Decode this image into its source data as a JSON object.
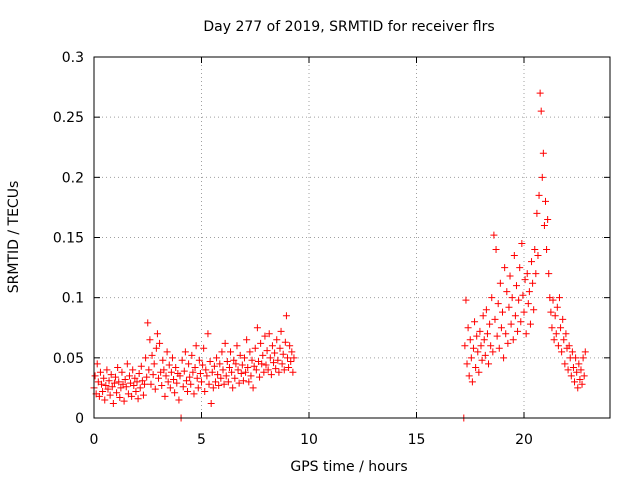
{
  "chart_data": {
    "type": "scatter",
    "title": "Day 277 of 2019, SRMTID for receiver flrs",
    "xlabel": "GPS time / hours",
    "ylabel": "SRMTID / TECUs",
    "xlim": [
      0,
      24
    ],
    "ylim": [
      0,
      0.3
    ],
    "xticks": [
      0,
      5,
      10,
      15,
      20
    ],
    "xtick_labels": [
      "0",
      "5",
      "10",
      "15",
      "20"
    ],
    "yticks": [
      0,
      0.05,
      0.1,
      0.15,
      0.2,
      0.25,
      0.3
    ],
    "ytick_labels": [
      "0",
      "0.05",
      "0.1",
      "0.15",
      "0.2",
      "0.25",
      "0.3"
    ],
    "grid": true,
    "marker": "plus",
    "color": "#ff0000",
    "series": [
      {
        "points": [
          [
            0.0,
            0.025
          ],
          [
            0.05,
            0.035
          ],
          [
            0.1,
            0.02
          ],
          [
            0.15,
            0.045
          ],
          [
            0.2,
            0.03
          ],
          [
            0.25,
            0.018
          ],
          [
            0.3,
            0.038
          ],
          [
            0.35,
            0.028
          ],
          [
            0.4,
            0.022
          ],
          [
            0.45,
            0.033
          ],
          [
            0.5,
            0.015
          ],
          [
            0.55,
            0.027
          ],
          [
            0.6,
            0.04
          ],
          [
            0.65,
            0.024
          ],
          [
            0.7,
            0.031
          ],
          [
            0.75,
            0.019
          ],
          [
            0.8,
            0.036
          ],
          [
            0.85,
            0.026
          ],
          [
            0.9,
            0.012
          ],
          [
            0.95,
            0.029
          ],
          [
            1.0,
            0.034
          ],
          [
            1.05,
            0.021
          ],
          [
            1.1,
            0.042
          ],
          [
            1.15,
            0.03
          ],
          [
            1.2,
            0.017
          ],
          [
            1.25,
            0.025
          ],
          [
            1.3,
            0.038
          ],
          [
            1.35,
            0.028
          ],
          [
            1.4,
            0.014
          ],
          [
            1.45,
            0.032
          ],
          [
            1.5,
            0.026
          ],
          [
            1.55,
            0.045
          ],
          [
            1.6,
            0.02
          ],
          [
            1.65,
            0.035
          ],
          [
            1.7,
            0.029
          ],
          [
            1.75,
            0.018
          ],
          [
            1.8,
            0.04
          ],
          [
            1.85,
            0.027
          ],
          [
            1.9,
            0.033
          ],
          [
            1.95,
            0.022
          ],
          [
            2.0,
            0.03
          ],
          [
            2.05,
            0.016
          ],
          [
            2.1,
            0.037
          ],
          [
            2.15,
            0.025
          ],
          [
            2.2,
            0.043
          ],
          [
            2.25,
            0.031
          ],
          [
            2.3,
            0.019
          ],
          [
            2.35,
            0.028
          ],
          [
            2.4,
            0.05
          ],
          [
            2.45,
            0.034
          ],
          [
            2.5,
            0.079
          ],
          [
            2.55,
            0.04
          ],
          [
            2.6,
            0.065
          ],
          [
            2.65,
            0.028
          ],
          [
            2.7,
            0.052
          ],
          [
            2.75,
            0.036
          ],
          [
            2.8,
            0.045
          ],
          [
            2.85,
            0.024
          ],
          [
            2.9,
            0.058
          ],
          [
            2.95,
            0.07
          ],
          [
            3.0,
            0.033
          ],
          [
            3.05,
            0.062
          ],
          [
            3.1,
            0.038
          ],
          [
            3.15,
            0.027
          ],
          [
            3.2,
            0.048
          ],
          [
            3.25,
            0.04
          ],
          [
            3.3,
            0.018
          ],
          [
            3.35,
            0.035
          ],
          [
            3.4,
            0.055
          ],
          [
            3.45,
            0.03
          ],
          [
            3.5,
            0.044
          ],
          [
            3.55,
            0.025
          ],
          [
            3.6,
            0.038
          ],
          [
            3.65,
            0.05
          ],
          [
            3.7,
            0.032
          ],
          [
            3.75,
            0.021
          ],
          [
            3.8,
            0.042
          ],
          [
            3.85,
            0.029
          ],
          [
            3.9,
            0.037
          ],
          [
            3.95,
            0.015
          ],
          [
            4.0,
            0.035
          ],
          [
            4.05,
            0.0
          ],
          [
            4.1,
            0.048
          ],
          [
            4.15,
            0.026
          ],
          [
            4.2,
            0.039
          ],
          [
            4.25,
            0.055
          ],
          [
            4.3,
            0.031
          ],
          [
            4.35,
            0.022
          ],
          [
            4.4,
            0.045
          ],
          [
            4.45,
            0.034
          ],
          [
            4.5,
            0.028
          ],
          [
            4.55,
            0.052
          ],
          [
            4.6,
            0.038
          ],
          [
            4.65,
            0.02
          ],
          [
            4.7,
            0.042
          ],
          [
            4.75,
            0.06
          ],
          [
            4.8,
            0.033
          ],
          [
            4.85,
            0.025
          ],
          [
            4.9,
            0.048
          ],
          [
            4.95,
            0.037
          ],
          [
            5.0,
            0.03
          ],
          [
            5.05,
            0.044
          ],
          [
            5.1,
            0.058
          ],
          [
            5.15,
            0.022
          ],
          [
            5.2,
            0.04
          ],
          [
            5.25,
            0.035
          ],
          [
            5.3,
            0.07
          ],
          [
            5.35,
            0.028
          ],
          [
            5.4,
            0.047
          ],
          [
            5.45,
            0.012
          ],
          [
            5.5,
            0.038
          ],
          [
            5.55,
            0.025
          ],
          [
            5.6,
            0.043
          ],
          [
            5.65,
            0.03
          ],
          [
            5.7,
            0.05
          ],
          [
            5.75,
            0.036
          ],
          [
            5.8,
            0.027
          ],
          [
            5.85,
            0.045
          ],
          [
            5.9,
            0.033
          ],
          [
            5.95,
            0.055
          ],
          [
            6.0,
            0.04
          ],
          [
            6.05,
            0.028
          ],
          [
            6.1,
            0.062
          ],
          [
            6.15,
            0.035
          ],
          [
            6.2,
            0.047
          ],
          [
            6.25,
            0.03
          ],
          [
            6.3,
            0.042
          ],
          [
            6.35,
            0.055
          ],
          [
            6.4,
            0.038
          ],
          [
            6.45,
            0.025
          ],
          [
            6.5,
            0.048
          ],
          [
            6.55,
            0.033
          ],
          [
            6.6,
            0.045
          ],
          [
            6.65,
            0.06
          ],
          [
            6.7,
            0.04
          ],
          [
            6.75,
            0.029
          ],
          [
            6.8,
            0.052
          ],
          [
            6.85,
            0.037
          ],
          [
            6.9,
            0.044
          ],
          [
            6.95,
            0.031
          ],
          [
            7.0,
            0.05
          ],
          [
            7.05,
            0.038
          ],
          [
            7.1,
            0.065
          ],
          [
            7.15,
            0.042
          ],
          [
            7.2,
            0.03
          ],
          [
            7.25,
            0.055
          ],
          [
            7.3,
            0.035
          ],
          [
            7.35,
            0.048
          ],
          [
            7.4,
            0.025
          ],
          [
            7.45,
            0.043
          ],
          [
            7.5,
            0.058
          ],
          [
            7.55,
            0.04
          ],
          [
            7.6,
            0.075
          ],
          [
            7.65,
            0.047
          ],
          [
            7.7,
            0.034
          ],
          [
            7.75,
            0.062
          ],
          [
            7.8,
            0.045
          ],
          [
            7.85,
            0.052
          ],
          [
            7.9,
            0.038
          ],
          [
            7.95,
            0.068
          ],
          [
            8.0,
            0.044
          ],
          [
            8.05,
            0.056
          ],
          [
            8.1,
            0.04
          ],
          [
            8.15,
            0.07
          ],
          [
            8.2,
            0.05
          ],
          [
            8.25,
            0.036
          ],
          [
            8.3,
            0.06
          ],
          [
            8.35,
            0.046
          ],
          [
            8.4,
            0.054
          ],
          [
            8.45,
            0.041
          ],
          [
            8.5,
            0.065
          ],
          [
            8.55,
            0.048
          ],
          [
            8.6,
            0.038
          ],
          [
            8.65,
            0.058
          ],
          [
            8.7,
            0.072
          ],
          [
            8.75,
            0.045
          ],
          [
            8.8,
            0.053
          ],
          [
            8.85,
            0.04
          ],
          [
            8.9,
            0.063
          ],
          [
            8.95,
            0.085
          ],
          [
            9.0,
            0.05
          ],
          [
            9.05,
            0.042
          ],
          [
            9.1,
            0.06
          ],
          [
            9.15,
            0.047
          ],
          [
            9.2,
            0.055
          ],
          [
            9.25,
            0.038
          ],
          [
            9.3,
            0.05
          ],
          [
            17.2,
            0.0
          ],
          [
            17.25,
            0.06
          ],
          [
            17.3,
            0.098
          ],
          [
            17.35,
            0.045
          ],
          [
            17.4,
            0.075
          ],
          [
            17.45,
            0.035
          ],
          [
            17.5,
            0.065
          ],
          [
            17.55,
            0.05
          ],
          [
            17.6,
            0.03
          ],
          [
            17.65,
            0.058
          ],
          [
            17.7,
            0.08
          ],
          [
            17.75,
            0.042
          ],
          [
            17.8,
            0.068
          ],
          [
            17.85,
            0.055
          ],
          [
            17.9,
            0.038
          ],
          [
            17.95,
            0.072
          ],
          [
            18.0,
            0.06
          ],
          [
            18.05,
            0.048
          ],
          [
            18.1,
            0.085
          ],
          [
            18.15,
            0.065
          ],
          [
            18.2,
            0.052
          ],
          [
            18.25,
            0.09
          ],
          [
            18.3,
            0.07
          ],
          [
            18.35,
            0.045
          ],
          [
            18.4,
            0.078
          ],
          [
            18.45,
            0.06
          ],
          [
            18.5,
            0.1
          ],
          [
            18.55,
            0.055
          ],
          [
            18.6,
            0.152
          ],
          [
            18.65,
            0.082
          ],
          [
            18.7,
            0.14
          ],
          [
            18.75,
            0.068
          ],
          [
            18.8,
            0.095
          ],
          [
            18.85,
            0.058
          ],
          [
            18.9,
            0.112
          ],
          [
            18.95,
            0.075
          ],
          [
            19.0,
            0.088
          ],
          [
            19.05,
            0.05
          ],
          [
            19.1,
            0.125
          ],
          [
            19.15,
            0.07
          ],
          [
            19.2,
            0.105
          ],
          [
            19.25,
            0.062
          ],
          [
            19.3,
            0.092
          ],
          [
            19.35,
            0.118
          ],
          [
            19.4,
            0.078
          ],
          [
            19.45,
            0.1
          ],
          [
            19.5,
            0.065
          ],
          [
            19.55,
            0.135
          ],
          [
            19.6,
            0.085
          ],
          [
            19.65,
            0.11
          ],
          [
            19.7,
            0.072
          ],
          [
            19.75,
            0.098
          ],
          [
            19.8,
            0.125
          ],
          [
            19.85,
            0.08
          ],
          [
            19.9,
            0.145
          ],
          [
            19.95,
            0.102
          ],
          [
            20.0,
            0.088
          ],
          [
            20.05,
            0.115
          ],
          [
            20.1,
            0.07
          ],
          [
            20.15,
            0.12
          ],
          [
            20.2,
            0.095
          ],
          [
            20.25,
            0.105
          ],
          [
            20.3,
            0.078
          ],
          [
            20.35,
            0.13
          ],
          [
            20.4,
            0.112
          ],
          [
            20.45,
            0.09
          ],
          [
            20.5,
            0.14
          ],
          [
            20.55,
            0.12
          ],
          [
            20.6,
            0.17
          ],
          [
            20.65,
            0.135
          ],
          [
            20.7,
            0.185
          ],
          [
            20.75,
            0.27
          ],
          [
            20.8,
            0.255
          ],
          [
            20.85,
            0.2
          ],
          [
            20.9,
            0.22
          ],
          [
            20.95,
            0.16
          ],
          [
            21.0,
            0.18
          ],
          [
            21.05,
            0.14
          ],
          [
            21.1,
            0.165
          ],
          [
            21.15,
            0.12
          ],
          [
            21.2,
            0.1
          ],
          [
            21.25,
            0.088
          ],
          [
            21.3,
            0.075
          ],
          [
            21.35,
            0.098
          ],
          [
            21.4,
            0.065
          ],
          [
            21.45,
            0.085
          ],
          [
            21.5,
            0.07
          ],
          [
            21.55,
            0.092
          ],
          [
            21.6,
            0.06
          ],
          [
            21.65,
            0.1
          ],
          [
            21.7,
            0.075
          ],
          [
            21.75,
            0.055
          ],
          [
            21.8,
            0.082
          ],
          [
            21.85,
            0.065
          ],
          [
            21.9,
            0.045
          ],
          [
            21.95,
            0.07
          ],
          [
            22.0,
            0.058
          ],
          [
            22.05,
            0.04
          ],
          [
            22.1,
            0.06
          ],
          [
            22.15,
            0.05
          ],
          [
            22.2,
            0.035
          ],
          [
            22.25,
            0.055
          ],
          [
            22.3,
            0.042
          ],
          [
            22.35,
            0.03
          ],
          [
            22.4,
            0.05
          ],
          [
            22.45,
            0.038
          ],
          [
            22.5,
            0.025
          ],
          [
            22.55,
            0.045
          ],
          [
            22.6,
            0.032
          ],
          [
            22.65,
            0.04
          ],
          [
            22.7,
            0.028
          ],
          [
            22.75,
            0.05
          ],
          [
            22.8,
            0.035
          ],
          [
            22.85,
            0.055
          ]
        ]
      }
    ]
  }
}
